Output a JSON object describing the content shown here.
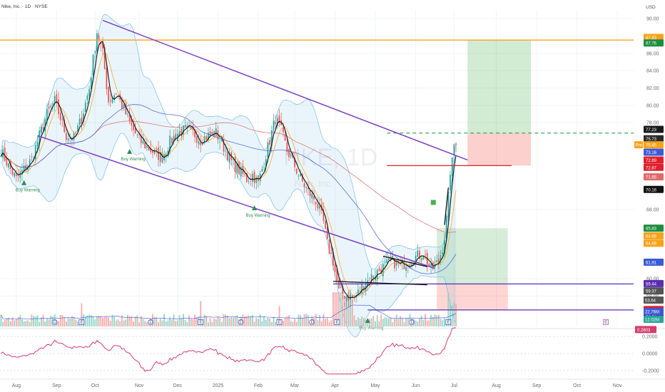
{
  "header": {
    "title": "Nike, Inc. · 1D · NYSE",
    "currency": "USD"
  },
  "watermark": {
    "symbol": "NKE, 1D",
    "name": "Nike, Inc."
  },
  "colors": {
    "up": "#26a69a",
    "down": "#ef5350",
    "channel": "#7b3fc4",
    "orange_line": "#f7a21b",
    "red_line": "#e0202e",
    "purple_line": "#5b2db3",
    "band": "#5aaee0",
    "sma_red": "#e06a6a",
    "sma_blue": "#3b5bd6",
    "rsi": "#d63d6e",
    "black_line": "#111111"
  },
  "chart_data": {
    "type": "candlestick",
    "ylim": [
      54.5,
      91.0
    ],
    "y_ticks": [
      {
        "value": 90,
        "label": "90.00"
      },
      {
        "value": 86,
        "label": "86.00"
      },
      {
        "value": 84,
        "label": "84.00"
      },
      {
        "value": 82,
        "label": "82.00"
      },
      {
        "value": 80,
        "label": "80.00"
      },
      {
        "value": 78,
        "label": "78.00"
      },
      {
        "value": 68,
        "label": "68.00"
      },
      {
        "value": 60,
        "label": "60.00"
      },
      {
        "value": 58,
        "label": "58.00"
      }
    ],
    "x_ticks": [
      {
        "index": 8,
        "label": "Aug"
      },
      {
        "index": 29,
        "label": "Sep"
      },
      {
        "index": 49,
        "label": "Oct"
      },
      {
        "index": 72,
        "label": "Nov"
      },
      {
        "index": 92,
        "label": "Dec"
      },
      {
        "index": 113,
        "label": "2025"
      },
      {
        "index": 134,
        "label": "Feb"
      },
      {
        "index": 153,
        "label": "Mar"
      },
      {
        "index": 174,
        "label": "Apr"
      },
      {
        "index": 195,
        "label": "May"
      },
      {
        "index": 216,
        "label": "Jun"
      },
      {
        "index": 236,
        "label": "Jul"
      },
      {
        "index": 258,
        "label": "Aug"
      },
      {
        "index": 279,
        "label": "Sep"
      },
      {
        "index": 300,
        "label": "Oct"
      },
      {
        "index": 321,
        "label": "Nov"
      }
    ],
    "closes_anchors": [
      [
        0,
        74.8
      ],
      [
        4,
        73.0
      ],
      [
        8,
        71.5
      ],
      [
        12,
        72.6
      ],
      [
        16,
        73.8
      ],
      [
        20,
        76.5
      ],
      [
        24,
        79.0
      ],
      [
        28,
        80.5
      ],
      [
        31,
        78.5
      ],
      [
        34,
        76.5
      ],
      [
        38,
        76.2
      ],
      [
        42,
        78.5
      ],
      [
        46,
        82.0
      ],
      [
        50,
        88.5
      ],
      [
        53,
        86.0
      ],
      [
        56,
        80.5
      ],
      [
        60,
        81.5
      ],
      [
        64,
        79.5
      ],
      [
        68,
        77.5
      ],
      [
        72,
        76.0
      ],
      [
        76,
        75.2
      ],
      [
        80,
        74.5
      ],
      [
        84,
        74.0
      ],
      [
        88,
        75.8
      ],
      [
        92,
        76.8
      ],
      [
        96,
        77.2
      ],
      [
        100,
        76.8
      ],
      [
        104,
        76.0
      ],
      [
        108,
        76.5
      ],
      [
        112,
        76.8
      ],
      [
        116,
        75.2
      ],
      [
        120,
        73.5
      ],
      [
        124,
        72.5
      ],
      [
        128,
        71.5
      ],
      [
        131,
        72.0
      ],
      [
        134,
        71.0
      ],
      [
        137,
        73.5
      ],
      [
        140,
        76.0
      ],
      [
        143,
        78.5
      ],
      [
        146,
        77.0
      ],
      [
        149,
        74.8
      ],
      [
        152,
        73.5
      ],
      [
        156,
        71.5
      ],
      [
        160,
        70.0
      ],
      [
        164,
        69.0
      ],
      [
        168,
        66.5
      ],
      [
        170,
        64.0
      ],
      [
        173,
        62.0
      ],
      [
        176,
        58.5
      ],
      [
        180,
        58.0
      ],
      [
        184,
        57.8
      ],
      [
        188,
        59.0
      ],
      [
        192,
        60.0
      ],
      [
        196,
        60.8
      ],
      [
        200,
        61.5
      ],
      [
        204,
        62.0
      ],
      [
        208,
        61.5
      ],
      [
        212,
        62.0
      ],
      [
        216,
        62.5
      ],
      [
        220,
        63.0
      ],
      [
        224,
        61.0
      ],
      [
        228,
        62.0
      ],
      [
        231,
        64.5
      ],
      [
        233,
        70.0
      ],
      [
        235,
        74.0
      ],
      [
        236,
        75.5
      ],
      [
        237,
        75.45
      ]
    ],
    "levels": {
      "orange_resistance": 87.53,
      "dashed_target": 76.8,
      "red_stop": 73.05,
      "purple_support_1": 59.4,
      "purple_support_2": 56.4
    },
    "price_labels": [
      {
        "label": "87.83",
        "bg": "#f7a21b",
        "value": 87.83
      },
      {
        "label": "87.76",
        "bg": "#1e8e3e",
        "value": 87.2
      },
      {
        "label": "77.23",
        "bg": "#1a1a1a",
        "value": 77.23
      },
      {
        "label": "75.73",
        "bg": "#2a2a2a",
        "value": 76.15
      },
      {
        "label": "75.45",
        "bg": "#f7a21b",
        "value": 75.45,
        "tag": "Pre"
      },
      {
        "label": "73.16",
        "bg": "#3b5bd6",
        "value": 74.6
      },
      {
        "label": "72.89",
        "bg": "#e0202e",
        "value": 73.7
      },
      {
        "label": "72.87",
        "bg": "#e0202e",
        "value": 72.85
      },
      {
        "label": "71.65",
        "bg": "#e06a6a",
        "value": 71.75
      },
      {
        "label": "70.16",
        "bg": "#111111",
        "value": 70.3
      },
      {
        "label": "65.83",
        "bg": "#1e8e3e",
        "value": 65.83
      },
      {
        "label": "64.69",
        "bg": "#f7a21b",
        "value": 64.95
      },
      {
        "label": "64.69",
        "bg": "#f7a21b",
        "value": 64.1
      },
      {
        "label": "61.91",
        "bg": "#3b5bd6",
        "value": 61.91
      },
      {
        "label": "59.44",
        "bg": "#5b2db3",
        "value": 59.44
      },
      {
        "label": "59.37",
        "bg": "#555555",
        "value": 58.6
      },
      {
        "label": "56.45",
        "bg": "#e0202e",
        "value": 56.45
      },
      {
        "label": "56.34",
        "bg": "#5b2db3",
        "value": 55.6
      }
    ],
    "volume_labels": [
      {
        "label": "53.64",
        "bg": "#555555"
      },
      {
        "label": "22.76M",
        "bg": "#3b5bd6"
      },
      {
        "label": "12.02M",
        "bg": "#26a69a"
      }
    ],
    "annotations": [
      {
        "text": "Buy Warning",
        "index": 12,
        "price": 70.8
      },
      {
        "text": "Buy Warning",
        "index": 67,
        "price": 74.4
      },
      {
        "text": "Buy Warning",
        "index": 132,
        "price": 67.9
      },
      {
        "text": "Buy Warning",
        "index": 191,
        "price": 54.9
      }
    ],
    "events": [
      {
        "index": 28,
        "letter": "D"
      },
      {
        "index": 42,
        "letter": "E"
      },
      {
        "index": 78,
        "letter": "D"
      },
      {
        "index": 104,
        "letter": "E"
      },
      {
        "index": 125,
        "letter": "D"
      },
      {
        "index": 145,
        "letter": "E"
      },
      {
        "index": 162,
        "letter": "D"
      },
      {
        "index": 175,
        "letter": "E"
      },
      {
        "index": 214,
        "letter": "D"
      },
      {
        "index": 233,
        "letter": "E"
      },
      {
        "index": 315,
        "letter": "E",
        "future": true
      }
    ],
    "rsi": {
      "current_label": "0.2803",
      "ticks": [
        {
          "value": 0.2,
          "label": "0.2000"
        },
        {
          "value": 0.0,
          "label": "0.0000"
        },
        {
          "value": -0.2,
          "label": "-0.2000"
        }
      ]
    }
  }
}
